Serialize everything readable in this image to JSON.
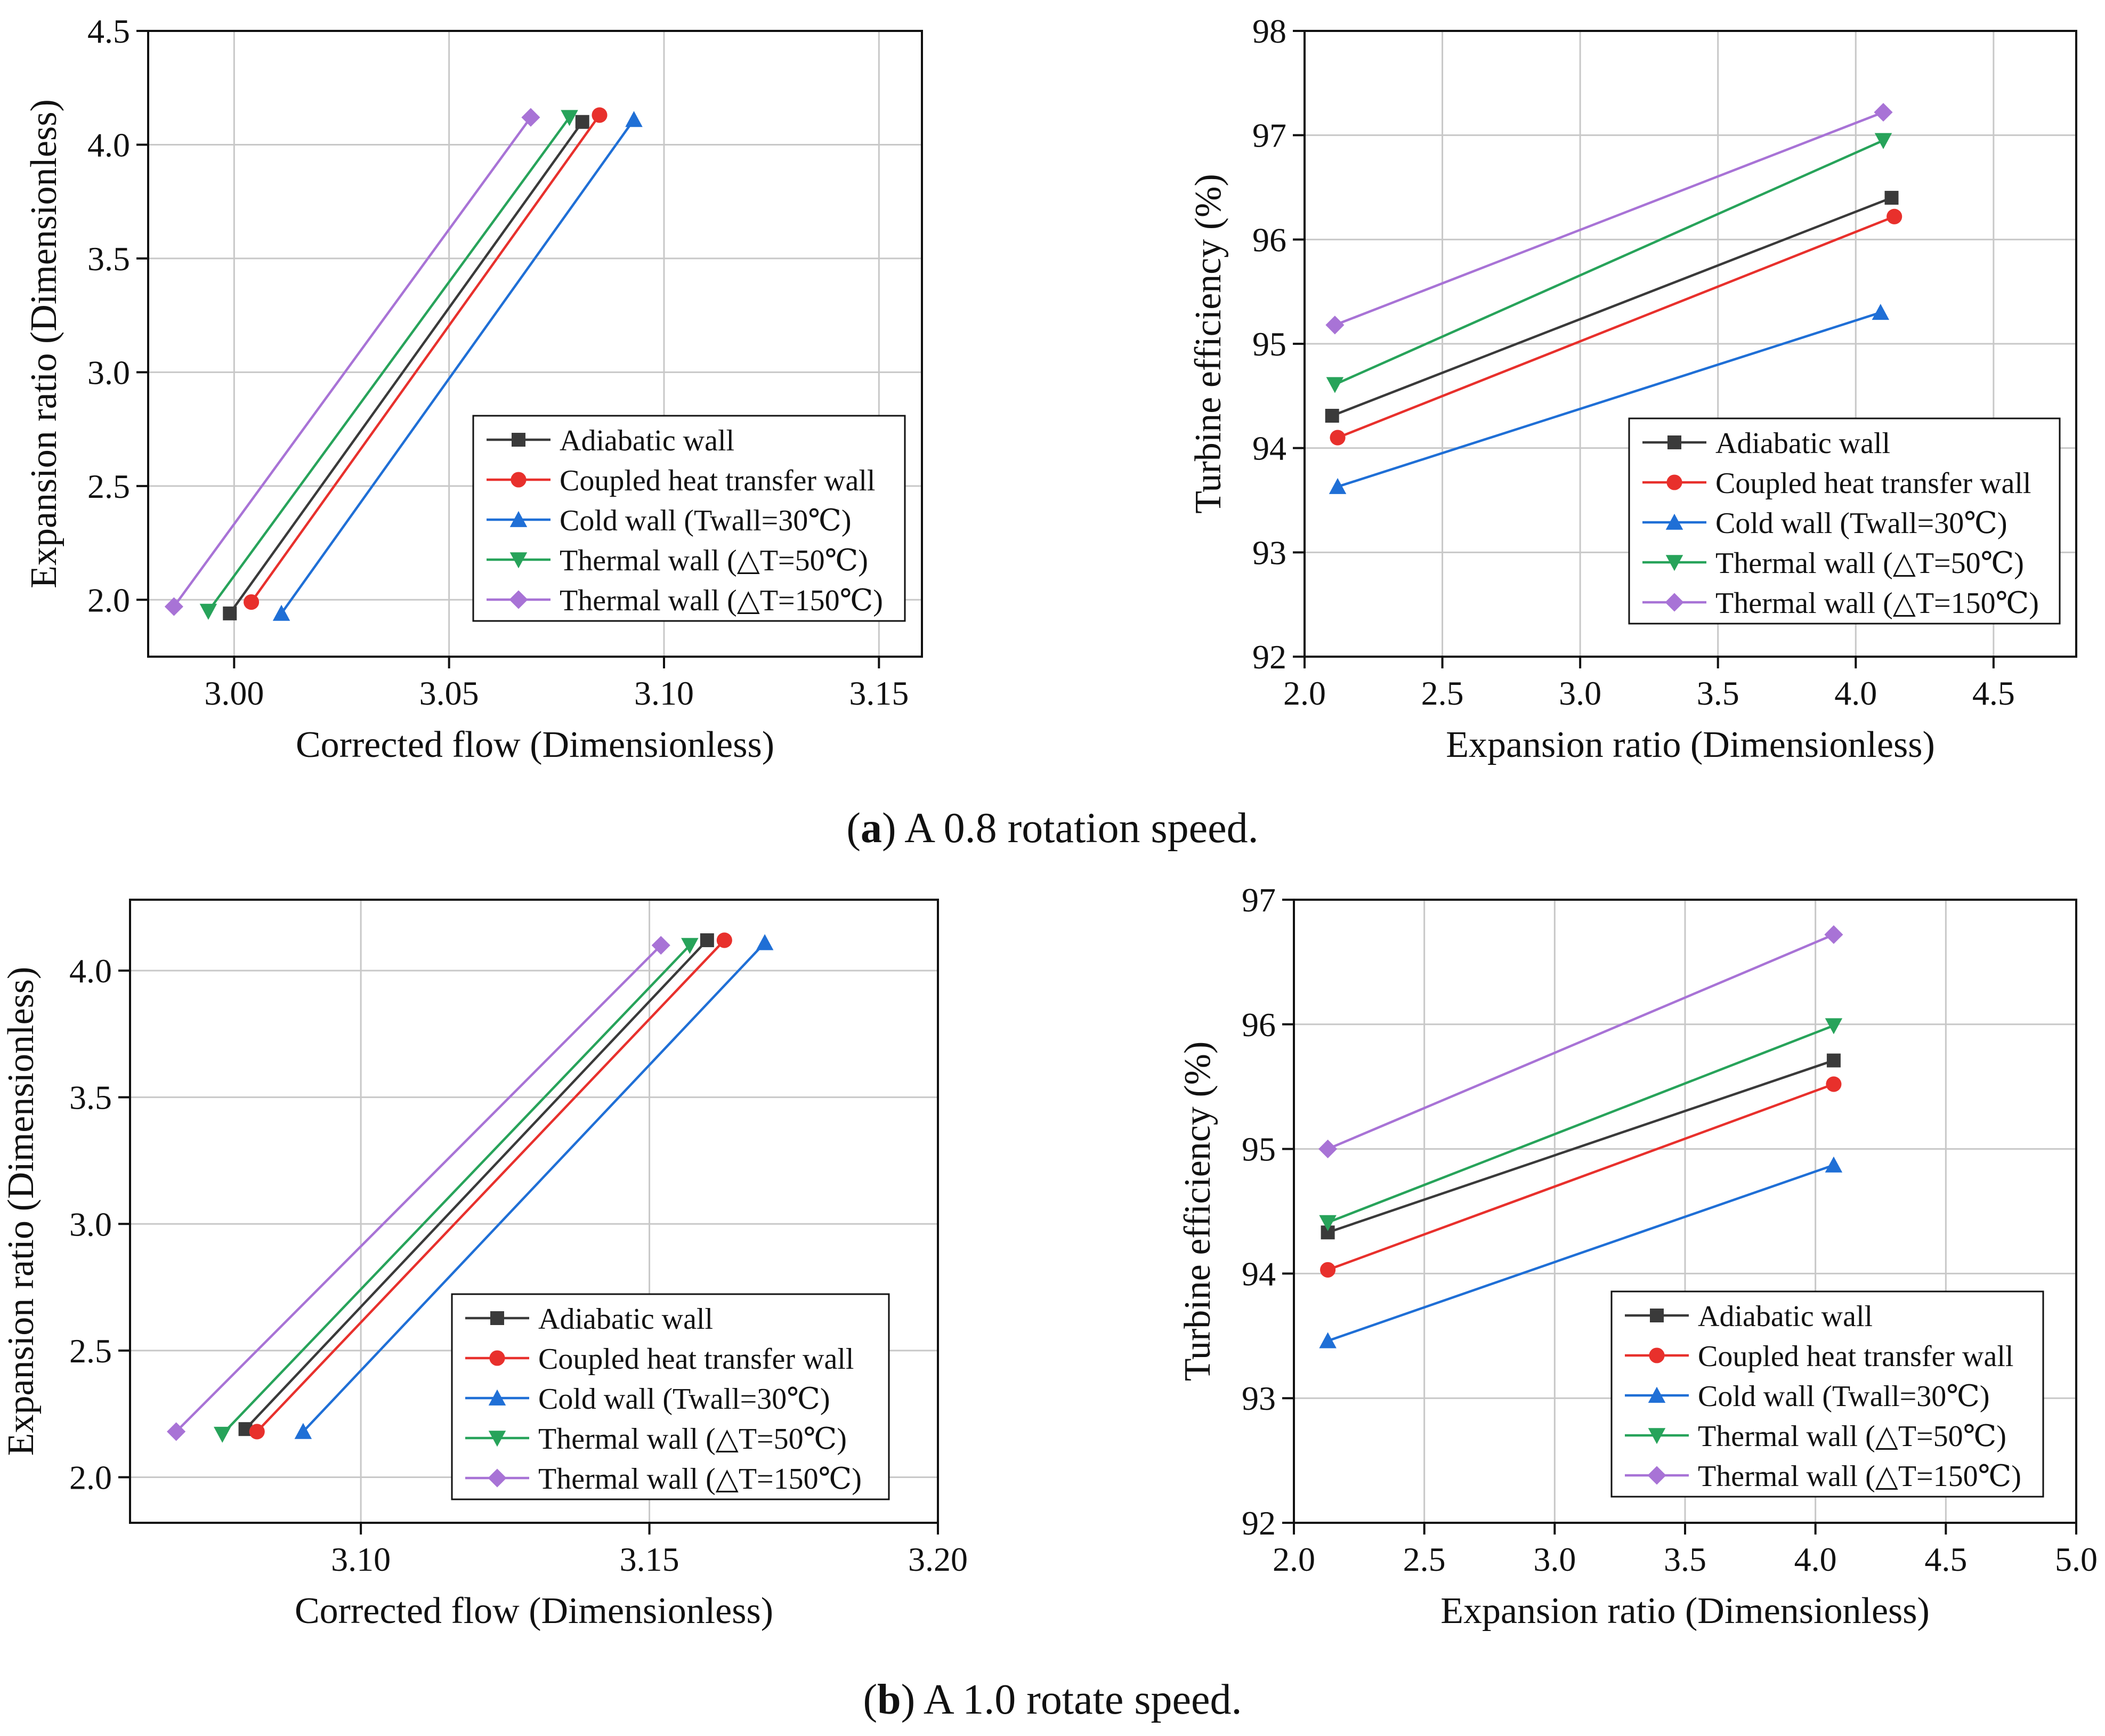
{
  "figure": {
    "caption_a": {
      "letter": "a",
      "text": " A 0.8 rotation speed."
    },
    "caption_b": {
      "letter": "b",
      "text": " A 1.0 rotate speed."
    }
  },
  "colors": {
    "adiabatic": "#3a3a3a",
    "coupled": "#e8302c",
    "cold": "#1f6fd6",
    "thermal50": "#27a35a",
    "thermal150": "#a873d6"
  },
  "chart_data": [
    {
      "id": "a-left",
      "type": "line",
      "xlabel": "Corrected flow (Dimensionless)",
      "ylabel": "Expansion ratio (Dimensionless)",
      "xlim": [
        2.98,
        3.16
      ],
      "ylim": [
        1.75,
        4.5
      ],
      "xticks": [
        3.0,
        3.05,
        3.1,
        3.15
      ],
      "xtick_labels": [
        "3.00",
        "3.05",
        "3.10",
        "3.15"
      ],
      "yticks": [
        2.0,
        2.5,
        3.0,
        3.5,
        4.0,
        4.5
      ],
      "ytick_labels": [
        "2.0",
        "2.5",
        "3.0",
        "3.5",
        "4.0",
        "4.5"
      ],
      "grid": true,
      "legend": "bottom-right",
      "series": [
        {
          "name": "Adiabatic wall",
          "key": "adiabatic",
          "marker": "square",
          "x": [
            2.999,
            3.081
          ],
          "y": [
            1.94,
            4.1
          ]
        },
        {
          "name": "Coupled heat transfer wall",
          "key": "coupled",
          "marker": "circle",
          "x": [
            3.004,
            3.085
          ],
          "y": [
            1.99,
            4.13
          ]
        },
        {
          "name": "Cold wall (Twall=30℃)",
          "key": "cold",
          "marker": "triangle-up",
          "x": [
            3.011,
            3.093
          ],
          "y": [
            1.94,
            4.11
          ]
        },
        {
          "name": "Thermal wall (△T=50℃)",
          "key": "thermal50",
          "marker": "triangle-down",
          "x": [
            2.994,
            3.078
          ],
          "y": [
            1.95,
            4.12
          ]
        },
        {
          "name": "Thermal wall (△T=150℃)",
          "key": "thermal150",
          "marker": "diamond",
          "x": [
            2.986,
            3.069
          ],
          "y": [
            1.97,
            4.12
          ]
        }
      ]
    },
    {
      "id": "a-right",
      "type": "line",
      "xlabel": "Expansion ratio (Dimensionless)",
      "ylabel": "Turbine efficiency (%)",
      "xlim": [
        2.0,
        4.8
      ],
      "ylim": [
        92,
        98
      ],
      "xticks": [
        2.0,
        2.5,
        3.0,
        3.5,
        4.0,
        4.5
      ],
      "xtick_labels": [
        "2.0",
        "2.5",
        "3.0",
        "3.5",
        "4.0",
        "4.5"
      ],
      "yticks": [
        92,
        93,
        94,
        95,
        96,
        97,
        98
      ],
      "ytick_labels": [
        "92",
        "93",
        "94",
        "95",
        "96",
        "97",
        "98"
      ],
      "grid": true,
      "legend": "bottom-right",
      "series": [
        {
          "name": "Adiabatic wall",
          "key": "adiabatic",
          "marker": "square",
          "x": [
            2.1,
            4.13
          ],
          "y": [
            94.31,
            96.4
          ]
        },
        {
          "name": "Coupled heat transfer wall",
          "key": "coupled",
          "marker": "circle",
          "x": [
            2.12,
            4.14
          ],
          "y": [
            94.1,
            96.22
          ]
        },
        {
          "name": "Cold wall (Twall=30℃)",
          "key": "cold",
          "marker": "triangle-up",
          "x": [
            2.12,
            4.09
          ],
          "y": [
            93.63,
            95.3
          ]
        },
        {
          "name": "Thermal wall (△T=50℃)",
          "key": "thermal50",
          "marker": "triangle-down",
          "x": [
            2.11,
            4.1
          ],
          "y": [
            94.61,
            96.95
          ]
        },
        {
          "name": "Thermal wall (△T=150℃)",
          "key": "thermal150",
          "marker": "diamond",
          "x": [
            2.11,
            4.1
          ],
          "y": [
            95.18,
            97.22
          ]
        }
      ]
    },
    {
      "id": "b-left",
      "type": "line",
      "xlabel": "Corrected flow (Dimensionless)",
      "ylabel": "Expansion ratio (Dimensionless)",
      "xlim": [
        3.06,
        3.2
      ],
      "ylim": [
        1.82,
        4.28
      ],
      "xticks": [
        3.1,
        3.15,
        3.2
      ],
      "xtick_labels": [
        "3.10",
        "3.15",
        "3.20"
      ],
      "yticks": [
        2.0,
        2.5,
        3.0,
        3.5,
        4.0
      ],
      "ytick_labels": [
        "2.0",
        "2.5",
        "3.0",
        "3.5",
        "4.0"
      ],
      "grid": true,
      "legend": "bottom-right",
      "series": [
        {
          "name": "Adiabatic wall",
          "key": "adiabatic",
          "marker": "square",
          "x": [
            3.08,
            3.16
          ],
          "y": [
            2.19,
            4.12
          ]
        },
        {
          "name": "Coupled heat transfer wall",
          "key": "coupled",
          "marker": "circle",
          "x": [
            3.082,
            3.163
          ],
          "y": [
            2.18,
            4.12
          ]
        },
        {
          "name": "Cold wall (Twall=30℃)",
          "key": "cold",
          "marker": "triangle-up",
          "x": [
            3.09,
            3.17
          ],
          "y": [
            2.18,
            4.11
          ]
        },
        {
          "name": "Thermal wall (△T=50℃)",
          "key": "thermal50",
          "marker": "triangle-down",
          "x": [
            3.076,
            3.157
          ],
          "y": [
            2.17,
            4.1
          ]
        },
        {
          "name": "Thermal wall (△T=150℃)",
          "key": "thermal150",
          "marker": "diamond",
          "x": [
            3.068,
            3.152
          ],
          "y": [
            2.18,
            4.1
          ]
        }
      ]
    },
    {
      "id": "b-right",
      "type": "line",
      "xlabel": "Expansion ratio (Dimensionless)",
      "ylabel": "Turbine efficiency (%)",
      "xlim": [
        2.0,
        5.0
      ],
      "ylim": [
        92,
        97
      ],
      "xticks": [
        2.0,
        2.5,
        3.0,
        3.5,
        4.0,
        4.5,
        5.0
      ],
      "xtick_labels": [
        "2.0",
        "2.5",
        "3.0",
        "3.5",
        "4.0",
        "4.5",
        "5.0"
      ],
      "yticks": [
        92,
        93,
        94,
        95,
        96,
        97
      ],
      "ytick_labels": [
        "92",
        "93",
        "94",
        "95",
        "96",
        "97"
      ],
      "grid": true,
      "legend": "bottom-right",
      "series": [
        {
          "name": "Adiabatic wall",
          "key": "adiabatic",
          "marker": "square",
          "x": [
            2.13,
            4.07
          ],
          "y": [
            94.33,
            95.71
          ]
        },
        {
          "name": "Coupled heat transfer wall",
          "key": "coupled",
          "marker": "circle",
          "x": [
            2.13,
            4.07
          ],
          "y": [
            94.03,
            95.52
          ]
        },
        {
          "name": "Cold wall (Twall=30℃)",
          "key": "cold",
          "marker": "triangle-up",
          "x": [
            2.13,
            4.07
          ],
          "y": [
            93.46,
            94.87
          ]
        },
        {
          "name": "Thermal wall (△T=50℃)",
          "key": "thermal50",
          "marker": "triangle-down",
          "x": [
            2.13,
            4.07
          ],
          "y": [
            94.41,
            95.99
          ]
        },
        {
          "name": "Thermal wall (△T=150℃)",
          "key": "thermal150",
          "marker": "diamond",
          "x": [
            2.13,
            4.07
          ],
          "y": [
            95.0,
            96.72
          ]
        }
      ]
    }
  ]
}
